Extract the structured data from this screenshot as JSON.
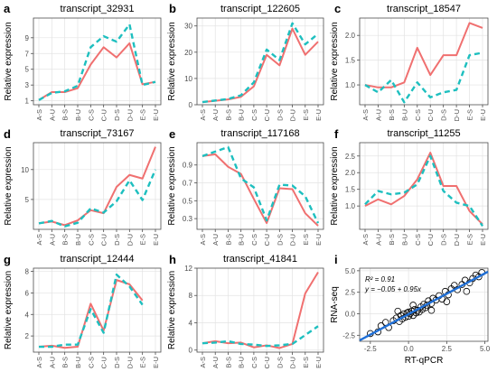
{
  "colors": {
    "rnaseq": "#F07070",
    "qpcr": "#1EBFBF",
    "fit": "#1F6FD6",
    "grid": "#E3E3E3",
    "frame": "#4D4D4D"
  },
  "ylabel": "Relative expression",
  "categories": [
    "A-S",
    "A-U",
    "B-S",
    "B-U",
    "C-S",
    "C-U",
    "D-S",
    "D-U",
    "E-S",
    "E-U"
  ],
  "chart_data": [
    {
      "type": "line",
      "panel_letter": "a",
      "title": "transcript_32931",
      "ylim": [
        0.5,
        11.5
      ],
      "yticks": [
        1,
        3,
        5,
        7,
        9
      ],
      "series": [
        {
          "style": "solid",
          "values": [
            1.1,
            2.1,
            2.1,
            2.6,
            5.6,
            7.8,
            6.5,
            8.3,
            3.1,
            3.4
          ]
        },
        {
          "style": "dashed",
          "values": [
            1.1,
            2.0,
            2.2,
            2.9,
            7.8,
            9.2,
            8.5,
            10.7,
            3.0,
            3.4
          ]
        }
      ]
    },
    {
      "type": "line",
      "panel_letter": "b",
      "title": "transcript_122605",
      "ylim": [
        0,
        33
      ],
      "yticks": [
        0,
        10,
        20,
        30
      ],
      "series": [
        {
          "style": "solid",
          "values": [
            1.0,
            1.5,
            2.0,
            3.0,
            7.0,
            19.0,
            15.0,
            29.0,
            19.0,
            24.0
          ]
        },
        {
          "style": "dashed",
          "values": [
            1.0,
            1.6,
            2.2,
            3.6,
            8.5,
            21.0,
            17.0,
            31.0,
            23.0,
            27.0
          ]
        }
      ]
    },
    {
      "type": "line",
      "panel_letter": "c",
      "title": "transcript_18547",
      "ylim": [
        0.6,
        2.35
      ],
      "yticks": [
        1.0,
        1.5,
        2.0
      ],
      "series": [
        {
          "style": "solid",
          "values": [
            1.0,
            0.95,
            0.95,
            1.05,
            1.75,
            1.2,
            1.6,
            1.6,
            2.25,
            2.15
          ]
        },
        {
          "style": "dashed",
          "values": [
            1.0,
            0.85,
            1.1,
            0.65,
            1.05,
            0.75,
            0.85,
            0.9,
            1.6,
            1.65
          ]
        }
      ]
    },
    {
      "type": "line",
      "panel_letter": "d",
      "title": "transcript_73167",
      "ylim": [
        0,
        14.5
      ],
      "yticks": [
        5,
        10
      ],
      "series": [
        {
          "style": "solid",
          "values": [
            1.0,
            1.3,
            0.7,
            1.5,
            3.2,
            2.7,
            7.1,
            9.1,
            8.5,
            13.8
          ]
        },
        {
          "style": "dashed",
          "values": [
            1.0,
            1.4,
            0.5,
            1.1,
            3.5,
            2.8,
            4.7,
            8.2,
            4.9,
            10.0
          ]
        }
      ]
    },
    {
      "type": "line",
      "panel_letter": "e",
      "title": "transcript_117168",
      "ylim": [
        0.18,
        1.15
      ],
      "yticks": [
        0.3,
        0.5,
        0.7,
        0.9
      ],
      "series": [
        {
          "style": "solid",
          "values": [
            1.0,
            1.02,
            0.88,
            0.8,
            0.52,
            0.25,
            0.64,
            0.63,
            0.36,
            0.22
          ]
        },
        {
          "style": "dashed",
          "values": [
            1.0,
            1.05,
            1.1,
            0.75,
            0.65,
            0.28,
            0.68,
            0.67,
            0.55,
            0.25
          ]
        }
      ]
    },
    {
      "type": "line",
      "panel_letter": "f",
      "title": "transcript_11255",
      "ylim": [
        0.3,
        2.9
      ],
      "yticks": [
        1.0,
        1.5,
        2.0,
        2.5
      ],
      "series": [
        {
          "style": "solid",
          "values": [
            1.0,
            1.2,
            1.05,
            1.3,
            1.8,
            2.6,
            1.6,
            1.6,
            0.85,
            0.45
          ]
        },
        {
          "style": "dashed",
          "values": [
            1.05,
            1.45,
            1.35,
            1.4,
            1.65,
            2.5,
            1.45,
            1.1,
            1.0,
            0.4
          ]
        }
      ]
    },
    {
      "type": "line",
      "panel_letter": "g",
      "title": "transcript_12444",
      "ylim": [
        0.5,
        8.3
      ],
      "yticks": [
        2,
        4,
        6,
        8
      ],
      "series": [
        {
          "style": "solid",
          "values": [
            1.0,
            1.1,
            0.9,
            1.0,
            5.0,
            2.5,
            7.2,
            6.8,
            5.3,
            null
          ]
        },
        {
          "style": "dashed",
          "values": [
            1.0,
            1.0,
            1.2,
            1.2,
            4.5,
            2.3,
            7.7,
            6.6,
            4.9,
            null
          ]
        }
      ]
    },
    {
      "type": "line",
      "panel_letter": "h",
      "title": "transcript_41841",
      "ylim": [
        -0.3,
        12
      ],
      "yticks": [
        0,
        4,
        8,
        12
      ],
      "series": [
        {
          "style": "solid",
          "values": [
            1.0,
            1.3,
            1.0,
            1.1,
            0.4,
            0.7,
            0.3,
            0.9,
            8.3,
            11.4
          ]
        },
        {
          "style": "dashed",
          "values": [
            1.0,
            1.1,
            1.3,
            0.9,
            0.8,
            0.6,
            0.7,
            0.9,
            2.2,
            3.5
          ]
        }
      ]
    },
    {
      "type": "scatter",
      "panel_letter": "i",
      "xlabel": "RT-qPCR",
      "ylabel": "RNA-seq",
      "xlim": [
        -3.2,
        5.2
      ],
      "ylim": [
        -3.2,
        5.3
      ],
      "xticks": [
        -2.5,
        0.0,
        2.5,
        5.0
      ],
      "yticks": [
        -2.5,
        0.0,
        2.5,
        5.0
      ],
      "r2_label": "R² = 0.91",
      "fit_label": "y = −0.05 + 0.95x",
      "fit": {
        "intercept": -0.05,
        "slope": 0.95
      },
      "points": [
        [
          -2.5,
          -2.3
        ],
        [
          -2.0,
          -2.1
        ],
        [
          -1.5,
          -1.0
        ],
        [
          -1.3,
          -1.6
        ],
        [
          -1.0,
          -0.8
        ],
        [
          -0.8,
          -0.5
        ],
        [
          -0.6,
          -0.9
        ],
        [
          -0.5,
          -0.2
        ],
        [
          -0.4,
          -0.6
        ],
        [
          -0.3,
          0.0
        ],
        [
          -0.2,
          -0.4
        ],
        [
          -0.1,
          0.1
        ],
        [
          0.0,
          -0.3
        ],
        [
          0.0,
          0.2
        ],
        [
          0.1,
          0.0
        ],
        [
          0.2,
          0.3
        ],
        [
          0.3,
          -0.2
        ],
        [
          0.4,
          0.5
        ],
        [
          0.5,
          0.1
        ],
        [
          0.6,
          0.4
        ],
        [
          0.7,
          0.2
        ],
        [
          0.8,
          0.8
        ],
        [
          0.9,
          0.5
        ],
        [
          1.0,
          1.1
        ],
        [
          1.1,
          0.7
        ],
        [
          1.2,
          1.0
        ],
        [
          1.3,
          1.5
        ],
        [
          1.5,
          1.2
        ],
        [
          1.6,
          1.8
        ],
        [
          1.8,
          1.6
        ],
        [
          2.0,
          2.1
        ],
        [
          2.2,
          1.7
        ],
        [
          2.4,
          2.6
        ],
        [
          2.6,
          2.2
        ],
        [
          2.8,
          2.9
        ],
        [
          3.0,
          3.3
        ],
        [
          3.2,
          2.8
        ],
        [
          3.5,
          3.4
        ],
        [
          3.7,
          3.9
        ],
        [
          4.0,
          3.6
        ],
        [
          4.2,
          4.1
        ],
        [
          4.4,
          4.5
        ],
        [
          4.6,
          4.3
        ],
        [
          4.8,
          4.8
        ],
        [
          -1.8,
          -1.4
        ],
        [
          0.3,
          1.0
        ],
        [
          1.5,
          0.4
        ],
        [
          2.5,
          1.4
        ],
        [
          -0.7,
          0.3
        ],
        [
          3.8,
          2.6
        ]
      ]
    }
  ]
}
